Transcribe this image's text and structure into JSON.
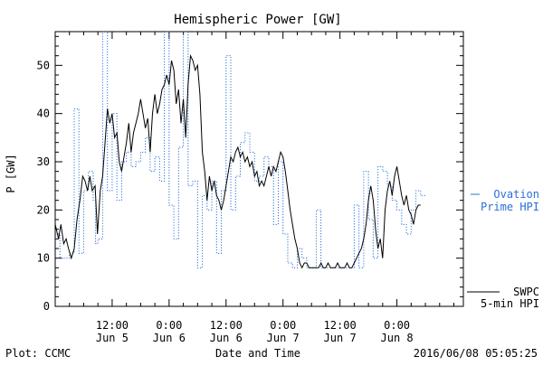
{
  "chart_data": {
    "type": "line",
    "title": "Hemispheric Power [GW]",
    "ylabel": "P [GW]",
    "xlabel": "Date and Time",
    "ylim": [
      0,
      57
    ],
    "yticks": [
      0,
      10,
      20,
      30,
      40,
      50
    ],
    "xlim_hours": [
      0,
      86
    ],
    "x_ticks": [
      {
        "hour": 12,
        "time": "12:00",
        "date": "Jun 5"
      },
      {
        "hour": 24,
        "time": "0:00",
        "date": "Jun 6"
      },
      {
        "hour": 36,
        "time": "12:00",
        "date": "Jun 6"
      },
      {
        "hour": 48,
        "time": "0:00",
        "date": "Jun 7"
      },
      {
        "hour": 60,
        "time": "12:00",
        "date": "Jun 7"
      },
      {
        "hour": 72,
        "time": "0:00",
        "date": "Jun 8"
      }
    ],
    "series": [
      {
        "name": "Ovation Prime HPI",
        "color": "#2a6fd6",
        "style": "dotted-step",
        "points": [
          [
            0,
            15
          ],
          [
            1,
            10
          ],
          [
            3,
            11
          ],
          [
            4,
            41
          ],
          [
            5,
            11
          ],
          [
            6,
            24
          ],
          [
            7,
            28
          ],
          [
            8,
            22
          ],
          [
            8.5,
            13
          ],
          [
            9,
            14
          ],
          [
            10,
            57
          ],
          [
            11,
            24
          ],
          [
            12,
            40
          ],
          [
            13,
            22
          ],
          [
            14,
            30
          ],
          [
            15,
            32
          ],
          [
            16,
            29
          ],
          [
            17,
            30
          ],
          [
            18,
            32
          ],
          [
            19,
            35
          ],
          [
            20,
            28
          ],
          [
            21,
            31
          ],
          [
            22,
            26
          ],
          [
            23,
            57
          ],
          [
            24,
            21
          ],
          [
            25,
            14
          ],
          [
            26,
            33
          ],
          [
            27,
            57
          ],
          [
            28,
            25
          ],
          [
            29,
            26
          ],
          [
            30,
            8
          ],
          [
            31,
            23
          ],
          [
            32,
            20
          ],
          [
            33,
            26
          ],
          [
            34,
            11
          ],
          [
            35,
            24
          ],
          [
            36,
            52
          ],
          [
            37,
            20
          ],
          [
            38,
            27
          ],
          [
            39,
            34
          ],
          [
            40,
            36
          ],
          [
            41,
            32
          ],
          [
            42,
            26
          ],
          [
            43,
            27
          ],
          [
            44,
            31
          ],
          [
            45,
            29
          ],
          [
            46,
            17
          ],
          [
            47,
            30
          ],
          [
            48,
            15
          ],
          [
            49,
            9
          ],
          [
            50,
            8
          ],
          [
            51,
            12
          ],
          [
            52,
            10
          ],
          [
            53,
            8
          ],
          [
            54,
            8
          ],
          [
            55,
            20
          ],
          [
            56,
            8
          ],
          [
            57,
            8
          ],
          [
            58,
            8
          ],
          [
            59,
            8
          ],
          [
            60,
            8
          ],
          [
            61,
            8
          ],
          [
            62,
            8
          ],
          [
            63,
            21
          ],
          [
            64,
            8
          ],
          [
            65,
            28
          ],
          [
            66,
            18
          ],
          [
            67,
            10
          ],
          [
            68,
            29
          ],
          [
            69,
            28
          ],
          [
            70,
            25
          ],
          [
            71,
            22
          ],
          [
            72,
            20
          ],
          [
            73,
            17
          ],
          [
            74,
            15
          ],
          [
            75,
            20
          ],
          [
            76,
            24
          ],
          [
            77,
            23
          ]
        ]
      },
      {
        "name": "SWPC 5-min HPI",
        "color": "#000000",
        "style": "solid",
        "points": [
          [
            0,
            17
          ],
          [
            0.7,
            14
          ],
          [
            1.2,
            17
          ],
          [
            1.8,
            13
          ],
          [
            2.3,
            14
          ],
          [
            2.8,
            12
          ],
          [
            3.4,
            10
          ],
          [
            4.0,
            12
          ],
          [
            4.6,
            18
          ],
          [
            5.2,
            22
          ],
          [
            5.8,
            27
          ],
          [
            6.3,
            26
          ],
          [
            6.8,
            24
          ],
          [
            7.3,
            27
          ],
          [
            7.8,
            24
          ],
          [
            8.4,
            25
          ],
          [
            8.9,
            15
          ],
          [
            9.5,
            24
          ],
          [
            10.0,
            27
          ],
          [
            10.5,
            34
          ],
          [
            11.0,
            41
          ],
          [
            11.5,
            38
          ],
          [
            12.0,
            40
          ],
          [
            12.5,
            35
          ],
          [
            13.0,
            36
          ],
          [
            13.5,
            30
          ],
          [
            14.0,
            28
          ],
          [
            14.5,
            31
          ],
          [
            15.0,
            34
          ],
          [
            15.5,
            38
          ],
          [
            16.0,
            32
          ],
          [
            16.5,
            36
          ],
          [
            17.0,
            38
          ],
          [
            17.5,
            40
          ],
          [
            18.0,
            43
          ],
          [
            18.5,
            40
          ],
          [
            19.0,
            37
          ],
          [
            19.5,
            39
          ],
          [
            20.0,
            32
          ],
          [
            20.5,
            40
          ],
          [
            21.0,
            44
          ],
          [
            21.5,
            40
          ],
          [
            22.0,
            42
          ],
          [
            22.5,
            45
          ],
          [
            23.0,
            46
          ],
          [
            23.5,
            48
          ],
          [
            24.0,
            46
          ],
          [
            24.5,
            51
          ],
          [
            25.0,
            49
          ],
          [
            25.5,
            42
          ],
          [
            26.0,
            45
          ],
          [
            26.5,
            38
          ],
          [
            27.0,
            43
          ],
          [
            27.5,
            35
          ],
          [
            28.0,
            46
          ],
          [
            28.5,
            52
          ],
          [
            29.0,
            51
          ],
          [
            29.5,
            49
          ],
          [
            30.0,
            50
          ],
          [
            30.5,
            44
          ],
          [
            31.0,
            32
          ],
          [
            31.5,
            28
          ],
          [
            32.0,
            22
          ],
          [
            32.5,
            27
          ],
          [
            33.0,
            24
          ],
          [
            33.5,
            26
          ],
          [
            34.0,
            23
          ],
          [
            34.5,
            22
          ],
          [
            35.0,
            20
          ],
          [
            35.5,
            22
          ],
          [
            36.0,
            25
          ],
          [
            36.5,
            28
          ],
          [
            37.0,
            31
          ],
          [
            37.5,
            30
          ],
          [
            38.0,
            32
          ],
          [
            38.5,
            33
          ],
          [
            39.0,
            31
          ],
          [
            39.5,
            32
          ],
          [
            40.0,
            30
          ],
          [
            40.5,
            31
          ],
          [
            41.0,
            29
          ],
          [
            41.5,
            30
          ],
          [
            42.0,
            27
          ],
          [
            42.5,
            28
          ],
          [
            43.0,
            25
          ],
          [
            43.5,
            26
          ],
          [
            44.0,
            25
          ],
          [
            44.5,
            27
          ],
          [
            45.0,
            29
          ],
          [
            45.5,
            27
          ],
          [
            46.0,
            29
          ],
          [
            46.5,
            28
          ],
          [
            47.0,
            30
          ],
          [
            47.5,
            32
          ],
          [
            48.0,
            31
          ],
          [
            48.5,
            28
          ],
          [
            49.0,
            24
          ],
          [
            49.5,
            20
          ],
          [
            50.0,
            17
          ],
          [
            50.5,
            14
          ],
          [
            51.0,
            12
          ],
          [
            51.5,
            9
          ],
          [
            52.0,
            8
          ],
          [
            52.5,
            9
          ],
          [
            53.0,
            9
          ],
          [
            53.5,
            8
          ],
          [
            54.0,
            8
          ],
          [
            54.5,
            8
          ],
          [
            55.0,
            8
          ],
          [
            55.5,
            8
          ],
          [
            56.0,
            9
          ],
          [
            56.5,
            8
          ],
          [
            57.0,
            8
          ],
          [
            57.5,
            9
          ],
          [
            58.0,
            8
          ],
          [
            58.5,
            8
          ],
          [
            59.0,
            8
          ],
          [
            59.5,
            9
          ],
          [
            60.0,
            8
          ],
          [
            60.5,
            8
          ],
          [
            61.0,
            8
          ],
          [
            61.5,
            9
          ],
          [
            62.0,
            8
          ],
          [
            62.5,
            8
          ],
          [
            63.0,
            9
          ],
          [
            63.5,
            10
          ],
          [
            64.0,
            11
          ],
          [
            64.5,
            12
          ],
          [
            65.0,
            14
          ],
          [
            65.5,
            17
          ],
          [
            66.0,
            22
          ],
          [
            66.5,
            25
          ],
          [
            67.0,
            22
          ],
          [
            67.5,
            16
          ],
          [
            68.0,
            12
          ],
          [
            68.5,
            14
          ],
          [
            69.0,
            10
          ],
          [
            69.5,
            20
          ],
          [
            70.0,
            24
          ],
          [
            70.5,
            26
          ],
          [
            71.0,
            23
          ],
          [
            71.5,
            27
          ],
          [
            72.0,
            29
          ],
          [
            72.5,
            26
          ],
          [
            73.0,
            23
          ],
          [
            73.5,
            21
          ],
          [
            74.0,
            23
          ],
          [
            74.5,
            20
          ],
          [
            75.0,
            19
          ],
          [
            75.5,
            17
          ],
          [
            76.0,
            20
          ],
          [
            76.5,
            21
          ],
          [
            77.0,
            21
          ]
        ]
      }
    ]
  },
  "legend": {
    "ovation_line1": "Ovation",
    "ovation_line2": "Prime HPI",
    "swpc_line1": "SWPC",
    "swpc_line2": "5-min HPI"
  },
  "footer": {
    "left": "Plot: CCMC",
    "right": "2016/06/08 05:05:25"
  }
}
